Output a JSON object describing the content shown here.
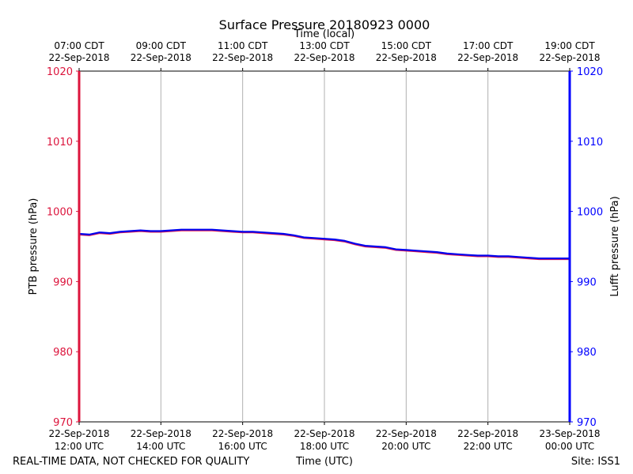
{
  "chart_data": {
    "type": "line",
    "title": "Surface Pressure 20180923 0000",
    "top_xlabel": "Time (local)",
    "xlabel": "Time (UTC)",
    "ylabel_left": "PTB pressure (hPa)",
    "ylabel_right": "Lufft pressure (hPa)",
    "ylim": [
      970,
      1020
    ],
    "yticks": [
      970,
      980,
      990,
      1000,
      1010,
      1020
    ],
    "xlim_hours": [
      12,
      24
    ],
    "grid": "vertical",
    "bottom_ticks": [
      {
        "hour": 12,
        "date": "22-Sep-2018",
        "time": "12:00 UTC"
      },
      {
        "hour": 14,
        "date": "22-Sep-2018",
        "time": "14:00 UTC"
      },
      {
        "hour": 16,
        "date": "22-Sep-2018",
        "time": "16:00 UTC"
      },
      {
        "hour": 18,
        "date": "22-Sep-2018",
        "time": "18:00 UTC"
      },
      {
        "hour": 20,
        "date": "22-Sep-2018",
        "time": "20:00 UTC"
      },
      {
        "hour": 22,
        "date": "22-Sep-2018",
        "time": "22:00 UTC"
      },
      {
        "hour": 24,
        "date": "23-Sep-2018",
        "time": "00:00 UTC"
      }
    ],
    "top_ticks": [
      {
        "hour": 12,
        "time": "07:00 CDT",
        "date": "22-Sep-2018"
      },
      {
        "hour": 14,
        "time": "09:00 CDT",
        "date": "22-Sep-2018"
      },
      {
        "hour": 16,
        "time": "11:00 CDT",
        "date": "22-Sep-2018"
      },
      {
        "hour": 18,
        "time": "13:00 CDT",
        "date": "22-Sep-2018"
      },
      {
        "hour": 20,
        "time": "15:00 CDT",
        "date": "22-Sep-2018"
      },
      {
        "hour": 22,
        "time": "17:00 CDT",
        "date": "22-Sep-2018"
      },
      {
        "hour": 24,
        "time": "19:00 CDT",
        "date": "22-Sep-2018"
      }
    ],
    "series": [
      {
        "name": "PTB pressure (hPa)",
        "axis": "left",
        "color": "#e6194b",
        "x": [
          12.0,
          12.25,
          12.5,
          12.75,
          13.0,
          13.25,
          13.5,
          13.75,
          14.0,
          14.25,
          14.5,
          14.75,
          15.0,
          15.25,
          15.5,
          15.75,
          16.0,
          16.25,
          16.5,
          16.75,
          17.0,
          17.25,
          17.5,
          17.75,
          18.0,
          18.25,
          18.5,
          18.75,
          19.0,
          19.25,
          19.5,
          19.75,
          20.0,
          20.25,
          20.5,
          20.75,
          21.0,
          21.25,
          21.5,
          21.75,
          22.0,
          22.25,
          22.5,
          22.75,
          23.0,
          23.25,
          23.5,
          23.75,
          24.0
        ],
        "values": [
          996.7,
          996.6,
          996.9,
          996.8,
          997.0,
          997.1,
          997.2,
          997.1,
          997.1,
          997.2,
          997.3,
          997.3,
          997.3,
          997.3,
          997.2,
          997.1,
          997.0,
          997.0,
          996.9,
          996.8,
          996.7,
          996.5,
          996.2,
          996.1,
          996.0,
          995.9,
          995.7,
          995.3,
          995.0,
          994.9,
          994.8,
          994.5,
          994.4,
          994.3,
          994.2,
          994.1,
          993.9,
          993.8,
          993.7,
          993.6,
          993.6,
          993.5,
          993.5,
          993.4,
          993.3,
          993.2,
          993.2,
          993.2,
          993.2
        ]
      },
      {
        "name": "Lufft pressure (hPa)",
        "axis": "right",
        "color": "#0000ee",
        "x": [
          12.0,
          12.25,
          12.5,
          12.75,
          13.0,
          13.25,
          13.5,
          13.75,
          14.0,
          14.25,
          14.5,
          14.75,
          15.0,
          15.25,
          15.5,
          15.75,
          16.0,
          16.25,
          16.5,
          16.75,
          17.0,
          17.25,
          17.5,
          17.75,
          18.0,
          18.25,
          18.5,
          18.75,
          19.0,
          19.25,
          19.5,
          19.75,
          20.0,
          20.25,
          20.5,
          20.75,
          21.0,
          21.25,
          21.5,
          21.75,
          22.0,
          22.25,
          22.5,
          22.75,
          23.0,
          23.25,
          23.5,
          23.75,
          24.0
        ],
        "values": [
          996.8,
          996.7,
          997.0,
          996.9,
          997.1,
          997.2,
          997.3,
          997.2,
          997.2,
          997.3,
          997.4,
          997.4,
          997.4,
          997.4,
          997.3,
          997.2,
          997.1,
          997.1,
          997.0,
          996.9,
          996.8,
          996.6,
          996.3,
          996.2,
          996.1,
          996.0,
          995.8,
          995.4,
          995.1,
          995.0,
          994.9,
          994.6,
          994.5,
          994.4,
          994.3,
          994.2,
          994.0,
          993.9,
          993.8,
          993.7,
          993.7,
          993.6,
          993.6,
          993.5,
          993.4,
          993.3,
          993.3,
          993.3,
          993.3
        ]
      }
    ]
  },
  "footer": {
    "left_note": "REAL-TIME DATA, NOT CHECKED FOR QUALITY",
    "site": "Site: ISS1"
  },
  "colors": {
    "left_axis": "#dc143c",
    "right_axis": "#0000ff",
    "grid": "#b0b0b0"
  }
}
